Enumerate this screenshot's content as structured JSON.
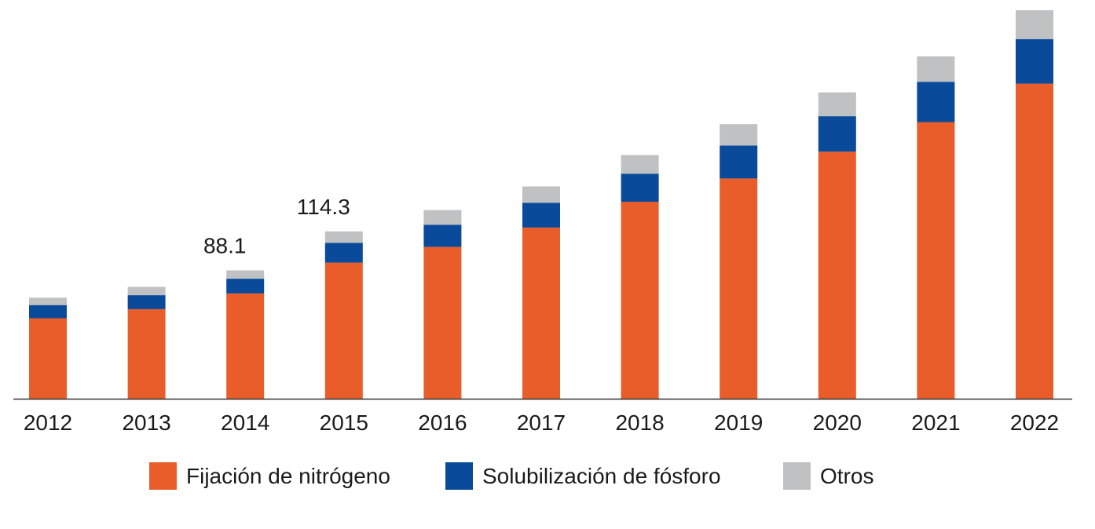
{
  "chart_data": {
    "type": "bar",
    "stacked": true,
    "title": "",
    "xlabel": "",
    "ylabel": "",
    "ylim": [
      0,
      200
    ],
    "grid": false,
    "legend_position": "bottom",
    "categories": [
      "2012",
      "2013",
      "2014",
      "2015",
      "2016",
      "2017",
      "2018",
      "2019",
      "2020",
      "2021",
      "2022"
    ],
    "series": [
      {
        "name": "Fijación de nitrógeno",
        "color": "#E85D2A",
        "values": [
          41.5,
          46.2,
          54.3,
          70.2,
          78.3,
          88.3,
          101.6,
          113.6,
          127.4,
          142.7,
          162.5
        ]
      },
      {
        "name": "Solubilización de fósforo",
        "color": "#0A4A9B",
        "values": [
          6.8,
          7.2,
          7.6,
          10.2,
          11.4,
          12.7,
          14.4,
          17.0,
          18.3,
          20.8,
          23.0
        ]
      },
      {
        "name": "Otros",
        "color": "#BFC1C3",
        "values": [
          3.8,
          4.3,
          4.3,
          5.9,
          7.6,
          8.5,
          9.7,
          11.0,
          12.3,
          13.1,
          14.9
        ]
      }
    ],
    "annotations": [
      {
        "category": "2014",
        "text": "88.1"
      },
      {
        "category": "2015",
        "text": "114.3"
      }
    ]
  }
}
